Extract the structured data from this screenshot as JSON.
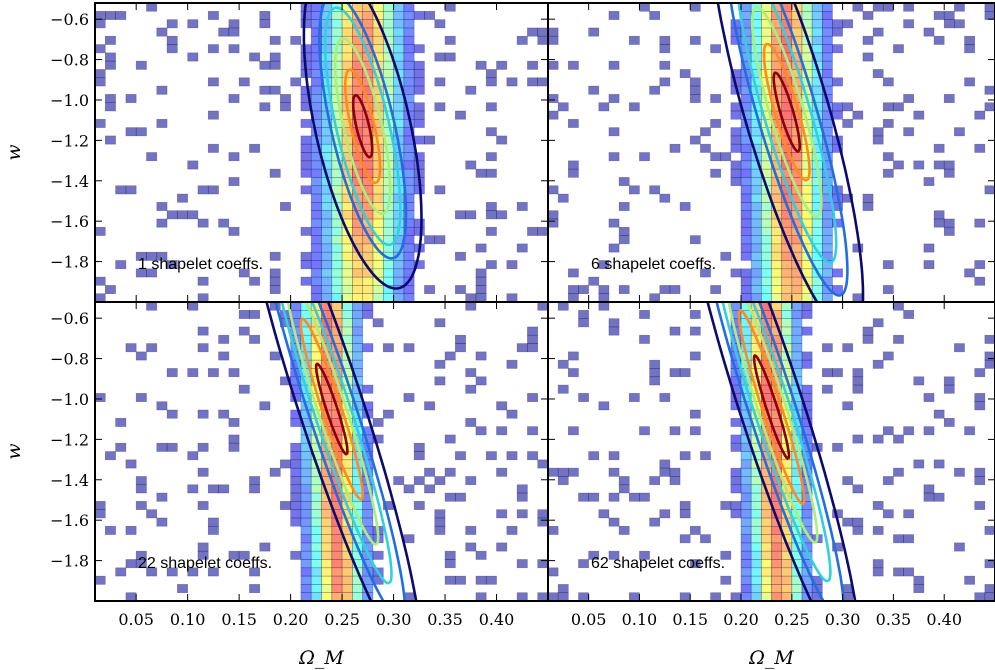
{
  "chart_data": {
    "type": "heatmap",
    "shared": {
      "xlabel": "Ω_M",
      "ylabel": "w",
      "xlim": [
        0.01,
        0.45
      ],
      "ylim": [
        -2.0,
        -0.52
      ],
      "x_ticks": [
        0.05,
        0.1,
        0.15,
        0.2,
        0.25,
        0.3,
        0.35,
        0.4
      ],
      "x_tick_labels": [
        "0.05",
        "0.10",
        "0.15",
        "0.20",
        "0.25",
        "0.30",
        "0.35",
        "0.40"
      ],
      "y_ticks": [
        -0.6,
        -0.8,
        -1.0,
        -1.2,
        -1.4,
        -1.6,
        -1.8
      ],
      "y_tick_labels": [
        "−0.6",
        "−0.8",
        "−1.0",
        "−1.2",
        "−1.4",
        "−1.6",
        "−1.8"
      ],
      "contour_colors": [
        "#0b0b6e",
        "#1f6fe0",
        "#2fd0e0",
        "#a8f07a",
        "#ff8c1a",
        "#8b0000"
      ],
      "histogram_colormap": "jet"
    },
    "panels": [
      {
        "label": "1 shapelet coeffs.",
        "center": [
          0.27,
          -1.13
        ],
        "slope": -3.0,
        "contours": [
          {
            "level": 1,
            "along": 0.12,
            "across": 0.045
          },
          {
            "level": 2,
            "along": 0.098,
            "across": 0.03
          },
          {
            "level": 3,
            "along": 0.088,
            "across": 0.025
          },
          {
            "level": 4,
            "along": 0.065,
            "across": 0.018
          },
          {
            "level": 5,
            "along": 0.042,
            "across": 0.011
          },
          {
            "level": 6,
            "along": 0.023,
            "across": 0.006
          }
        ]
      },
      {
        "label": "6 shapelet coeffs.",
        "center": [
          0.245,
          -1.06
        ],
        "slope": -2.4,
        "contours": [
          {
            "level": 1,
            "along": 0.17,
            "across": 0.04
          },
          {
            "level": 2,
            "along": 0.14,
            "across": 0.028
          },
          {
            "level": 3,
            "along": 0.115,
            "across": 0.022
          },
          {
            "level": 4,
            "along": 0.08,
            "across": 0.016
          },
          {
            "level": 5,
            "along": 0.052,
            "across": 0.011
          },
          {
            "level": 6,
            "along": 0.03,
            "across": 0.006
          }
        ]
      },
      {
        "label": "22 shapelet coeffs.",
        "center": [
          0.24,
          -1.05
        ],
        "slope": -2.2,
        "contours": [
          {
            "level": 1,
            "along": 0.2,
            "across": 0.03
          },
          {
            "level": 2,
            "along": 0.165,
            "across": 0.022
          },
          {
            "level": 3,
            "along": 0.135,
            "across": 0.017
          },
          {
            "level": 4,
            "along": 0.105,
            "across": 0.013
          },
          {
            "level": 5,
            "along": 0.07,
            "across": 0.009
          },
          {
            "level": 6,
            "along": 0.035,
            "across": 0.005
          }
        ]
      },
      {
        "label": "62 shapelet coeffs.",
        "center": [
          0.23,
          -1.04
        ],
        "slope": -2.2,
        "contours": [
          {
            "level": 1,
            "along": 0.2,
            "across": 0.03
          },
          {
            "level": 2,
            "along": 0.165,
            "across": 0.022
          },
          {
            "level": 3,
            "along": 0.135,
            "across": 0.017
          },
          {
            "level": 4,
            "along": 0.105,
            "across": 0.013
          },
          {
            "level": 5,
            "along": 0.075,
            "across": 0.009
          },
          {
            "level": 6,
            "along": 0.04,
            "across": 0.005
          }
        ]
      }
    ]
  }
}
